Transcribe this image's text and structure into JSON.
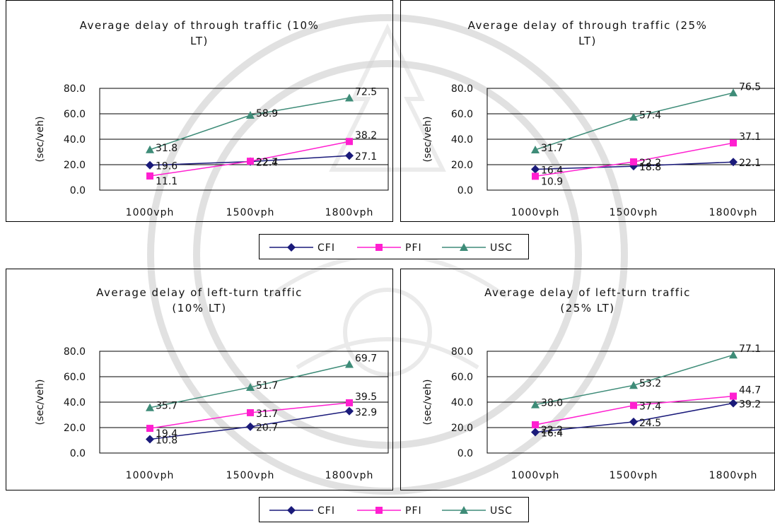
{
  "colors": {
    "CFI": "#1a1a7a",
    "PFI": "#ff1fd0",
    "USC": "#3e8c78"
  },
  "legend": {
    "items": [
      "CFI",
      "PFI",
      "USC"
    ]
  },
  "chart_data": [
    {
      "type": "line",
      "title_line1": "Average delay of through traffic (10%",
      "title_line2": "LT)",
      "ylabel": "(sec/veh)",
      "categories": [
        "1000vph",
        "1500vph",
        "1800vph"
      ],
      "ylim": [
        0,
        80
      ],
      "yticks": [
        "80.0",
        "60.0",
        "40.0",
        "20.0",
        "0.0"
      ],
      "series": [
        {
          "name": "CFI",
          "values": [
            19.6,
            22.4,
            27.1
          ],
          "labels": [
            "19.6",
            "22.4",
            "27.1"
          ]
        },
        {
          "name": "PFI",
          "values": [
            11.1,
            22.7,
            38.2
          ],
          "labels": [
            "11.1",
            "22.7",
            "38.2"
          ]
        },
        {
          "name": "USC",
          "values": [
            31.8,
            58.9,
            72.5
          ],
          "labels": [
            "31.8",
            "58.9",
            "72.5"
          ]
        }
      ]
    },
    {
      "type": "line",
      "title_line1": "Average delay of through traffic (25%",
      "title_line2": "LT)",
      "ylabel": "(sec/veh)",
      "categories": [
        "1000vph",
        "1500vph",
        "1800vph"
      ],
      "ylim": [
        0,
        80
      ],
      "yticks": [
        "80.0",
        "60.0",
        "40.0",
        "20.0",
        "0.0"
      ],
      "series": [
        {
          "name": "CFI",
          "values": [
            16.4,
            18.8,
            22.1
          ],
          "labels": [
            "16.4",
            "18.8",
            "22.1"
          ]
        },
        {
          "name": "PFI",
          "values": [
            10.9,
            22.2,
            37.1
          ],
          "labels": [
            "10.9",
            "22.2",
            "37.1"
          ]
        },
        {
          "name": "USC",
          "values": [
            31.7,
            57.4,
            76.5
          ],
          "labels": [
            "31.7",
            "57.4",
            "76.5"
          ]
        }
      ]
    },
    {
      "type": "line",
      "title_line1": "Average delay of  left-turn traffic",
      "title_line2": "(10% LT)",
      "ylabel": "(sec/veh)",
      "categories": [
        "1000vph",
        "1500vph",
        "1800vph"
      ],
      "ylim": [
        0,
        80
      ],
      "yticks": [
        "80.0",
        "60.0",
        "40.0",
        "20.0",
        "0.0"
      ],
      "series": [
        {
          "name": "CFI",
          "values": [
            10.8,
            20.7,
            32.9
          ],
          "labels": [
            "10.8",
            "20.7",
            "32.9"
          ]
        },
        {
          "name": "PFI",
          "values": [
            19.4,
            31.7,
            39.5
          ],
          "labels": [
            "19.4",
            "31.7",
            "39.5"
          ]
        },
        {
          "name": "USC",
          "values": [
            35.7,
            51.7,
            69.7
          ],
          "labels": [
            "35.7",
            "51.7",
            "69.7"
          ]
        }
      ]
    },
    {
      "type": "line",
      "title_line1": "Average delay of  left-turn traffic",
      "title_line2": "(25% LT)",
      "ylabel": "(sec/veh)",
      "categories": [
        "1000vph",
        "1500vph",
        "1800vph"
      ],
      "ylim": [
        0,
        80
      ],
      "yticks": [
        "80.0",
        "60.0",
        "40.0",
        "20.0",
        "0.0"
      ],
      "series": [
        {
          "name": "CFI",
          "values": [
            16.4,
            24.5,
            39.2
          ],
          "labels": [
            "16.4",
            "24.5",
            "39.2"
          ]
        },
        {
          "name": "PFI",
          "values": [
            22.2,
            37.4,
            44.7
          ],
          "labels": [
            "22.2",
            "37.4",
            "44.7"
          ]
        },
        {
          "name": "USC",
          "values": [
            38.0,
            53.2,
            77.1
          ],
          "labels": [
            "38.0",
            "53.2",
            "77.1"
          ]
        }
      ]
    }
  ]
}
